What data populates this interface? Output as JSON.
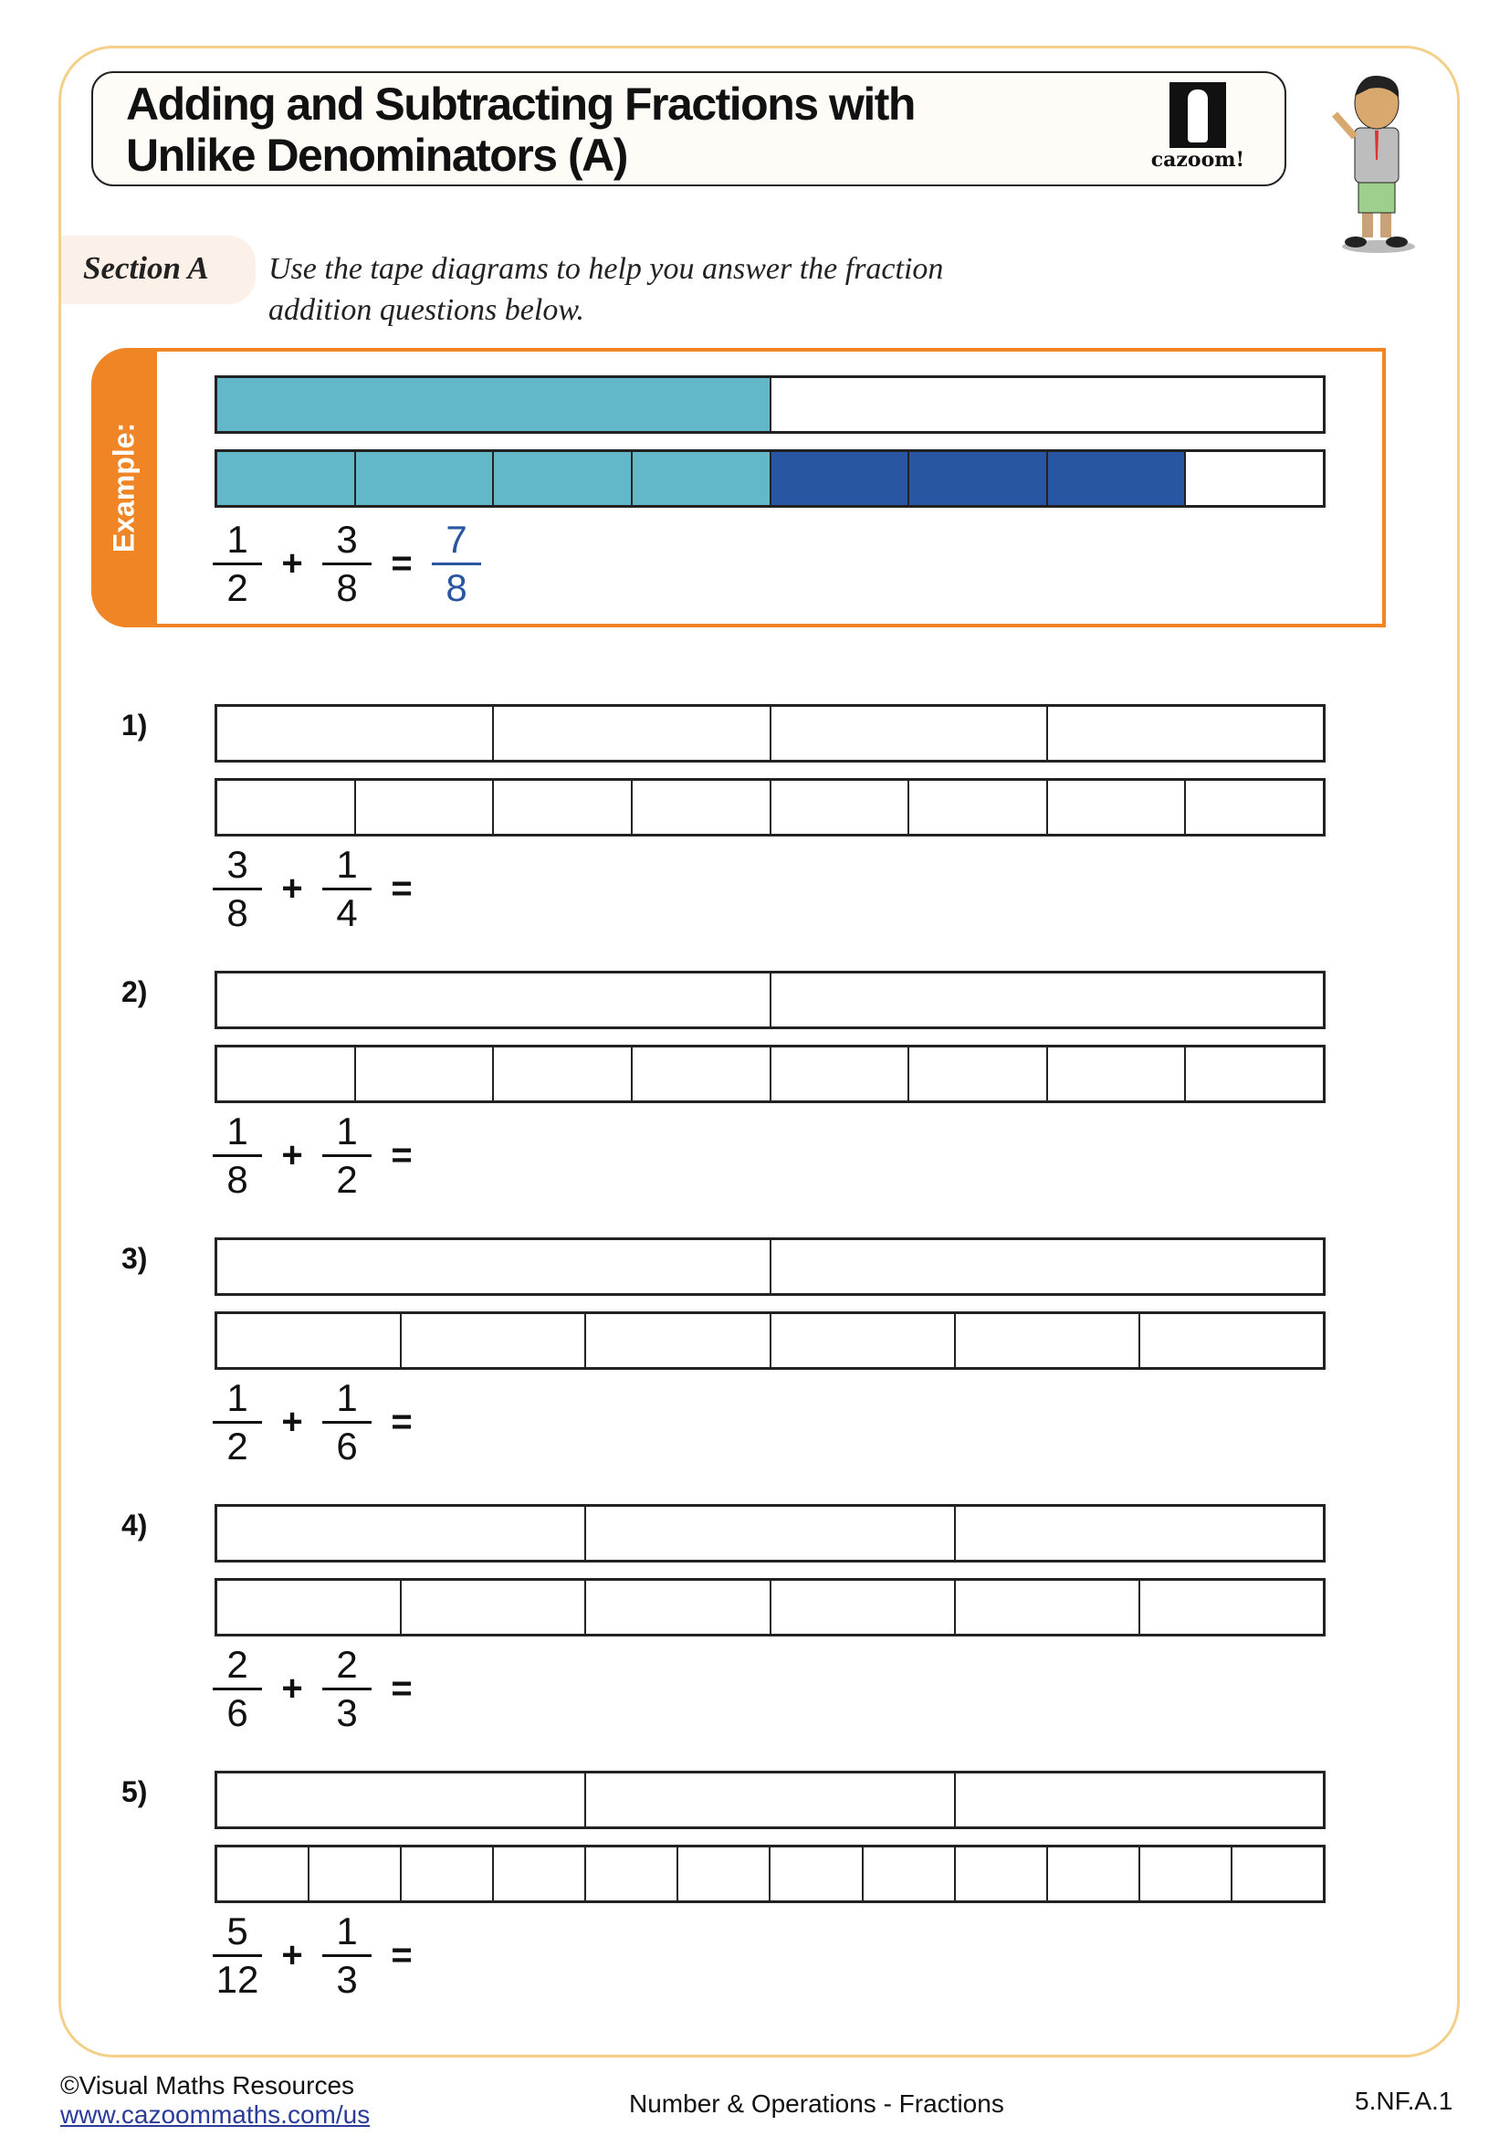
{
  "header": {
    "title_line1": "Adding and Subtracting Fractions with",
    "title_line2": "Unlike Denominators (A)",
    "logo_text": "cazoom!"
  },
  "section": {
    "label": "Section A",
    "instruction_line1": "Use the tape diagrams to help you answer the fraction",
    "instruction_line2": "addition questions below."
  },
  "colors": {
    "accent": "#f08526",
    "light_blue": "#62b8c9",
    "dark_blue": "#2856a3",
    "frame": "#f3d08a"
  },
  "example": {
    "label": "Example:",
    "tape1": {
      "parts": 2,
      "shaded": [
        1,
        0
      ]
    },
    "tape2": {
      "parts": 8,
      "shaded": [
        1,
        1,
        1,
        1,
        2,
        2,
        2,
        0
      ]
    },
    "a": {
      "n": "1",
      "d": "2"
    },
    "b": {
      "n": "3",
      "d": "8"
    },
    "answer": {
      "n": "7",
      "d": "8"
    },
    "plus": "+",
    "equals": "="
  },
  "questions": [
    {
      "num": "1)",
      "tape1": 4,
      "tape2": 8,
      "a": {
        "n": "3",
        "d": "8"
      },
      "b": {
        "n": "1",
        "d": "4"
      }
    },
    {
      "num": "2)",
      "tape1": 2,
      "tape2": 8,
      "a": {
        "n": "1",
        "d": "8"
      },
      "b": {
        "n": "1",
        "d": "2"
      }
    },
    {
      "num": "3)",
      "tape1": 2,
      "tape2": 6,
      "a": {
        "n": "1",
        "d": "2"
      },
      "b": {
        "n": "1",
        "d": "6"
      }
    },
    {
      "num": "4)",
      "tape1": 3,
      "tape2": 6,
      "a": {
        "n": "2",
        "d": "6"
      },
      "b": {
        "n": "2",
        "d": "3"
      }
    },
    {
      "num": "5)",
      "tape1": 3,
      "tape2": 12,
      "a": {
        "n": "5",
        "d": "12"
      },
      "b": {
        "n": "1",
        "d": "3"
      }
    }
  ],
  "footer": {
    "copyright": "©Visual Maths Resources",
    "url": "www.cazoommaths.com/us",
    "topic": "Number & Operations - Fractions",
    "code": "5.NF.A.1"
  }
}
